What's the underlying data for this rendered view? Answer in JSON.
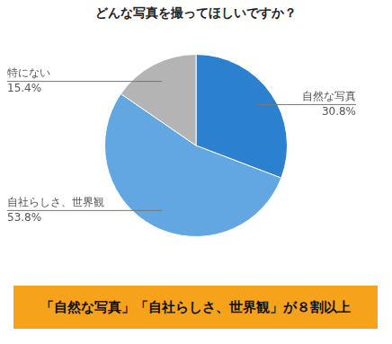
{
  "chart_data": {
    "type": "pie",
    "title": "どんな写真を撮ってほしいですか？",
    "categories": [
      "自然な写真",
      "自社らしさ、世界観",
      "特にない"
    ],
    "values": [
      30.8,
      53.8,
      15.4
    ],
    "value_labels": [
      "30.8%",
      "53.8%",
      "15.4%"
    ],
    "colors": [
      "#2b80d0",
      "#62a6e2",
      "#b4b4b4"
    ],
    "data_labels": true,
    "annotation": "「自然な写真」「自社らしさ、世界観」が８割以上"
  }
}
